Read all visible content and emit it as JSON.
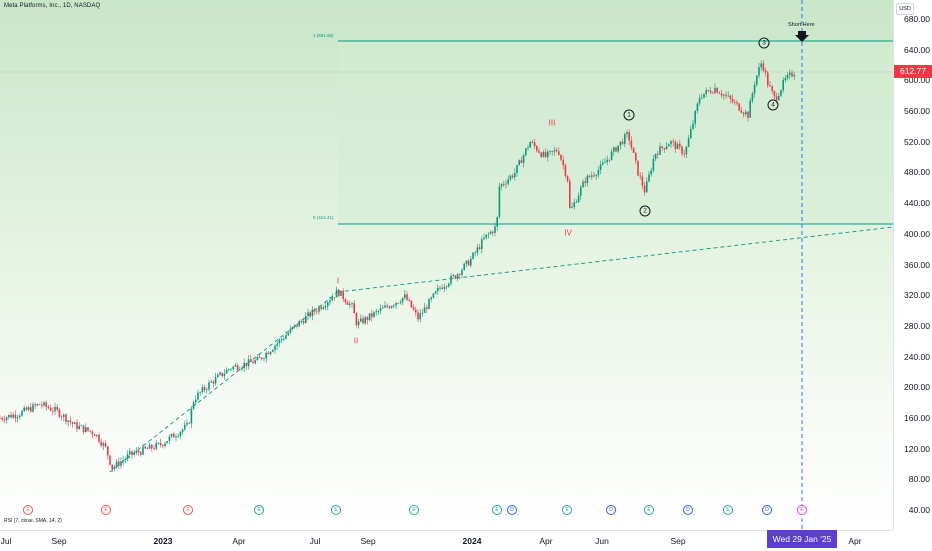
{
  "header": {
    "symbol_line": "Meta Platforms, Inc., 1D, NASDAQ"
  },
  "currency": "USD",
  "price": {
    "last": "612.77",
    "last_value": 612.77
  },
  "y_axis": {
    "min": 40,
    "max": 700,
    "ticks": [
      "680.00",
      "640.00",
      "600.00",
      "560.00",
      "520.00",
      "480.00",
      "440.00",
      "400.00",
      "360.00",
      "320.00",
      "280.00",
      "240.00",
      "200.00",
      "160.00",
      "120.00",
      "80.00",
      "40.00"
    ]
  },
  "time_axis": {
    "labels": [
      "Jul",
      "Sep",
      "2023",
      "Apr",
      "Jul",
      "Sep",
      "2024",
      "Apr",
      "Jun",
      "Sep",
      "Apr"
    ],
    "bold": [
      "2023",
      "2024"
    ],
    "cursor_date": "Wed 29 Jan '25"
  },
  "fib": {
    "top_label": "1 (651.66)",
    "top_value": 651.66,
    "bottom_label": "0 (414.41)",
    "bottom_value": 414.41
  },
  "annotations": {
    "short_here": "Short Here",
    "waves_roman": [
      "I",
      "II",
      "III",
      "IV"
    ],
    "waves_circled": [
      "1",
      "2",
      "3",
      "4"
    ]
  },
  "events": [
    "E",
    "E",
    "E",
    "E",
    "E",
    "E",
    "E",
    "D",
    "E",
    "D",
    "E",
    "D",
    "E",
    "D",
    "E"
  ],
  "indicator": {
    "rsi_label": "RSI (7, close, SMA, 14, 2)"
  },
  "colors": {
    "up": "#089981",
    "down": "#f23645",
    "fib_line": "#089981",
    "trend": "#089981",
    "cursor": "#2962ff",
    "date_tag": "#5b3dd6",
    "price_tag": "#f23645"
  },
  "chart_data": {
    "type": "line",
    "title": "Meta Platforms, Inc., 1D, NASDAQ",
    "ylim": [
      40,
      700
    ],
    "series": [
      {
        "values": [
          160,
          165,
          175,
          180,
          165,
          150,
          140,
          120,
          95,
          110,
          125,
          140,
          175,
          190,
          210,
          225,
          240,
          250,
          270,
          290,
          305,
          320,
          300,
          285,
          295,
          310,
          320,
          300,
          330,
          340,
          360,
          380,
          400,
          460,
          490,
          510,
          520,
          500,
          470,
          430,
          490,
          500,
          520,
          540,
          470,
          510,
          500,
          530,
          570,
          590,
          600,
          580,
          560,
          620,
          640,
          600,
          610,
          613
        ]
      }
    ]
  }
}
